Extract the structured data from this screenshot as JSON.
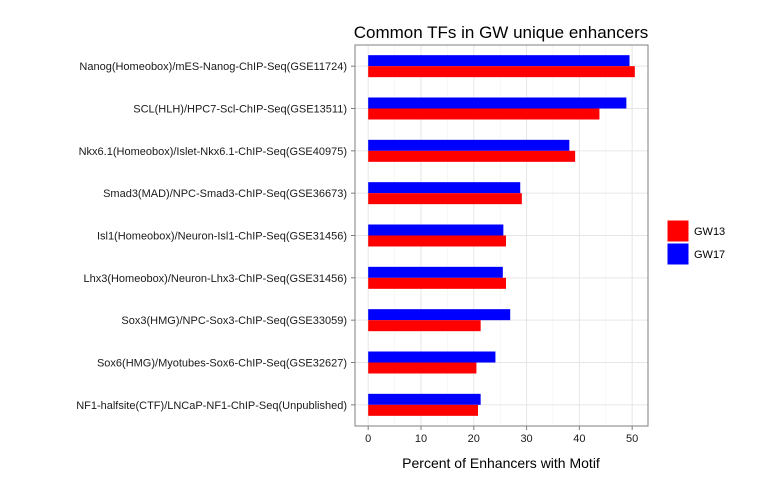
{
  "chart_data": {
    "type": "bar",
    "orientation": "horizontal",
    "title": "Common TFs in GW unique enhancers",
    "xlabel": "Percent of Enhancers with Motif",
    "ylabel": "",
    "xlim": [
      -2.5,
      53
    ],
    "xticks": [
      0,
      10,
      20,
      30,
      40,
      50
    ],
    "grid": true,
    "legend_position": "right",
    "categories": [
      "Nanog(Homeobox)/mES-Nanog-ChIP-Seq(GSE11724)",
      "SCL(HLH)/HPC7-Scl-ChIP-Seq(GSE13511)",
      "Nkx6.1(Homeobox)/Islet-Nkx6.1-ChIP-Seq(GSE40975)",
      "Smad3(MAD)/NPC-Smad3-ChIP-Seq(GSE36673)",
      "Isl1(Homeobox)/Neuron-Isl1-ChIP-Seq(GSE31456)",
      "Lhx3(Homeobox)/Neuron-Lhx3-ChIP-Seq(GSE31456)",
      "Sox3(HMG)/NPC-Sox3-ChIP-Seq(GSE33059)",
      "Sox6(HMG)/Myotubes-Sox6-ChIP-Seq(GSE32627)",
      "NF1-halfsite(CTF)/LNCaP-NF1-ChIP-Seq(Unpublished)"
    ],
    "series": [
      {
        "name": "GW13",
        "color": "#ff0000",
        "values": [
          50.5,
          43.8,
          39.2,
          29.1,
          26.1,
          26.1,
          21.3,
          20.5,
          20.8
        ]
      },
      {
        "name": "GW17",
        "color": "#0000ff",
        "values": [
          49.5,
          48.9,
          38.1,
          28.8,
          25.6,
          25.5,
          26.9,
          24.1,
          21.3
        ]
      }
    ]
  }
}
